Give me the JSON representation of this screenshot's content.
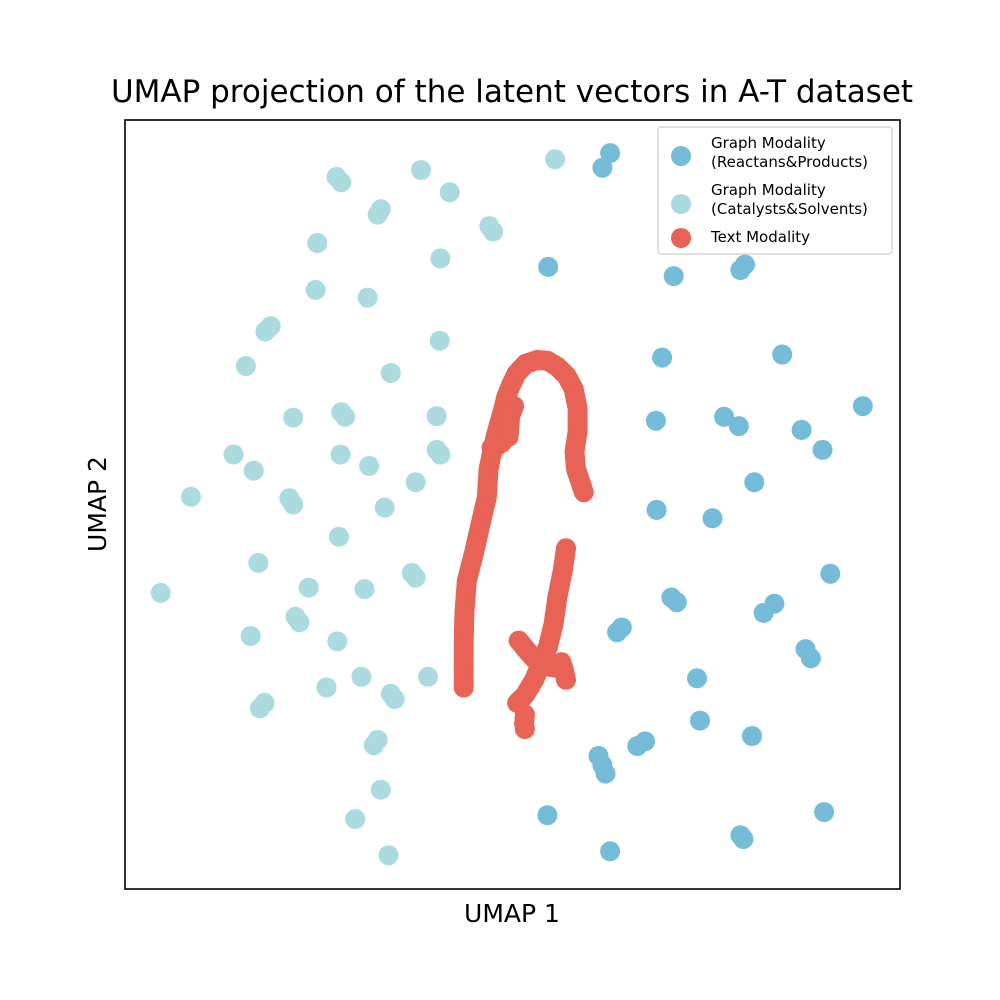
{
  "chart_data": {
    "type": "scatter",
    "title": "UMAP projection of the latent vectors in A-T dataset",
    "xlabel": "UMAP 1",
    "ylabel": "UMAP 2",
    "xlim": [
      0,
      100
    ],
    "ylim": [
      0,
      100
    ],
    "ticks_visible": false,
    "grid": false,
    "legend_position": "top-right",
    "series": [
      {
        "name": "Graph Modality\n(Reactans&Products)",
        "color": "#74bcd7",
        "points": [
          [
            62.6,
            95.7
          ],
          [
            61.6,
            93.8
          ],
          [
            54.6,
            80.9
          ],
          [
            70.8,
            79.7
          ],
          [
            79.4,
            80.5
          ],
          [
            80.0,
            81.2
          ],
          [
            69.3,
            69.1
          ],
          [
            84.8,
            69.5
          ],
          [
            95.2,
            62.8
          ],
          [
            68.5,
            60.9
          ],
          [
            77.3,
            61.4
          ],
          [
            79.2,
            60.2
          ],
          [
            87.3,
            59.7
          ],
          [
            90.0,
            57.1
          ],
          [
            81.2,
            52.9
          ],
          [
            68.6,
            49.3
          ],
          [
            75.8,
            48.2
          ],
          [
            91.0,
            41.0
          ],
          [
            70.5,
            37.9
          ],
          [
            71.2,
            37.3
          ],
          [
            82.4,
            35.9
          ],
          [
            83.8,
            37.1
          ],
          [
            63.5,
            33.4
          ],
          [
            64.1,
            34.0
          ],
          [
            87.8,
            31.2
          ],
          [
            88.5,
            30.0
          ],
          [
            73.8,
            27.4
          ],
          [
            74.2,
            21.9
          ],
          [
            80.9,
            19.9
          ],
          [
            66.1,
            18.6
          ],
          [
            67.1,
            19.2
          ],
          [
            61.1,
            17.3
          ],
          [
            61.6,
            16.1
          ],
          [
            62.0,
            15.0
          ],
          [
            54.5,
            9.6
          ],
          [
            90.2,
            10.0
          ],
          [
            79.4,
            7.0
          ],
          [
            79.8,
            6.5
          ],
          [
            62.6,
            4.9
          ]
        ]
      },
      {
        "name": "Graph Modality\n(Catalysts&Solvents)",
        "color": "#acdbdf",
        "points": [
          [
            55.5,
            94.9
          ],
          [
            38.2,
            93.5
          ],
          [
            27.3,
            92.6
          ],
          [
            27.9,
            91.9
          ],
          [
            41.9,
            90.6
          ],
          [
            33.0,
            88.4
          ],
          [
            32.6,
            87.7
          ],
          [
            47.0,
            86.2
          ],
          [
            47.5,
            85.5
          ],
          [
            24.8,
            84.0
          ],
          [
            40.7,
            82.0
          ],
          [
            24.6,
            77.9
          ],
          [
            31.3,
            76.9
          ],
          [
            18.8,
            73.2
          ],
          [
            18.1,
            72.5
          ],
          [
            40.6,
            71.3
          ],
          [
            15.6,
            68.0
          ],
          [
            34.3,
            67.1
          ],
          [
            21.7,
            61.3
          ],
          [
            27.9,
            62.0
          ],
          [
            28.4,
            61.4
          ],
          [
            40.2,
            61.5
          ],
          [
            14.0,
            56.5
          ],
          [
            27.8,
            56.5
          ],
          [
            40.2,
            57.1
          ],
          [
            40.7,
            56.5
          ],
          [
            31.5,
            55.0
          ],
          [
            16.6,
            54.4
          ],
          [
            37.5,
            52.9
          ],
          [
            8.5,
            51.0
          ],
          [
            21.2,
            50.8
          ],
          [
            21.7,
            50.0
          ],
          [
            33.5,
            49.6
          ],
          [
            27.6,
            45.8
          ],
          [
            17.2,
            42.4
          ],
          [
            37.0,
            41.1
          ],
          [
            37.5,
            40.5
          ],
          [
            4.6,
            38.5
          ],
          [
            23.7,
            39.2
          ],
          [
            30.9,
            39.0
          ],
          [
            22.0,
            35.4
          ],
          [
            22.5,
            34.7
          ],
          [
            16.2,
            32.9
          ],
          [
            27.4,
            32.2
          ],
          [
            30.5,
            27.6
          ],
          [
            39.1,
            27.6
          ],
          [
            26.0,
            26.2
          ],
          [
            34.3,
            25.4
          ],
          [
            34.8,
            24.7
          ],
          [
            18.0,
            24.2
          ],
          [
            17.4,
            23.5
          ],
          [
            32.6,
            19.4
          ],
          [
            32.1,
            18.7
          ],
          [
            33.0,
            12.9
          ],
          [
            29.7,
            9.1
          ],
          [
            34.0,
            4.4
          ]
        ]
      },
      {
        "name": "Text Modality",
        "color": "#e86355",
        "paths": [
          [
            [
              43.7,
              26.2
            ],
            [
              43.7,
              32.0
            ],
            [
              43.8,
              36.0
            ],
            [
              44.1,
              40.0
            ],
            [
              45.1,
              44.0
            ],
            [
              46.0,
              48.0
            ],
            [
              46.7,
              51.0
            ],
            [
              46.9,
              54.5
            ],
            [
              47.5,
              57.5
            ],
            [
              48.0,
              59.5
            ],
            [
              48.7,
              62.0
            ],
            [
              49.2,
              64.0
            ],
            [
              49.8,
              65.5
            ],
            [
              50.5,
              67.0
            ],
            [
              51.7,
              68.3
            ],
            [
              53.2,
              68.8
            ],
            [
              54.5,
              68.7
            ],
            [
              55.8,
              67.9
            ],
            [
              57.0,
              66.7
            ],
            [
              57.9,
              65.0
            ],
            [
              58.4,
              62.5
            ],
            [
              58.4,
              59.5
            ],
            [
              58.0,
              56.8
            ],
            [
              58.2,
              54.6
            ],
            [
              59.2,
              51.6
            ]
          ],
          [
            [
              49.0,
              58.6
            ],
            [
              48.6,
              58.0
            ],
            [
              48.0,
              57.6
            ],
            [
              47.3,
              57.4
            ]
          ],
          [
            [
              50.2,
              62.8
            ],
            [
              49.7,
              61.5
            ],
            [
              49.6,
              60.0
            ],
            [
              49.5,
              58.8
            ]
          ],
          [
            [
              56.9,
              44.3
            ],
            [
              56.5,
              41.5
            ],
            [
              55.8,
              38.0
            ],
            [
              55.3,
              34.5
            ],
            [
              54.6,
              31.6
            ],
            [
              53.7,
              29.4
            ],
            [
              52.8,
              27.2
            ],
            [
              51.6,
              25.2
            ],
            [
              50.6,
              24.2
            ]
          ],
          [
            [
              50.8,
              32.3
            ],
            [
              52.2,
              30.6
            ],
            [
              53.6,
              29.1
            ],
            [
              55.4,
              28.8
            ],
            [
              56.3,
              29.5
            ],
            [
              56.7,
              28.2
            ],
            [
              56.9,
              27.2
            ]
          ],
          [
            [
              51.6,
              22.7
            ],
            [
              51.5,
              21.5
            ],
            [
              51.6,
              20.8
            ]
          ]
        ]
      }
    ]
  }
}
